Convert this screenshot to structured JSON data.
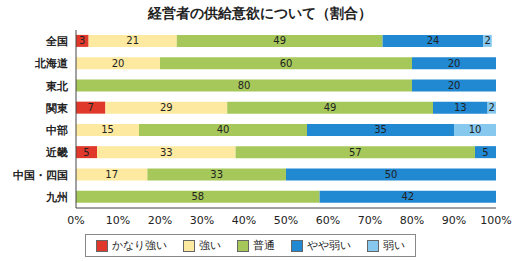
{
  "chart_data": {
    "type": "bar",
    "title": "経営者の供給意欲について（割合）",
    "orientation": "horizontal",
    "stacked": true,
    "data_labels": true,
    "grid": false,
    "legend": "bottom",
    "categories": [
      "全国",
      "北海道",
      "東北",
      "関東",
      "中部",
      "近畿",
      "中国・四国",
      "九州"
    ],
    "series": [
      {
        "name": "かなり強い",
        "color": "#e0392b",
        "values": [
          3,
          null,
          null,
          7,
          null,
          5,
          null,
          null
        ]
      },
      {
        "name": "強い",
        "color": "#fde9a0",
        "values": [
          21,
          20,
          null,
          29,
          15,
          33,
          17,
          null
        ]
      },
      {
        "name": "普通",
        "color": "#a6c85a",
        "values": [
          49,
          60,
          80,
          49,
          40,
          57,
          33,
          58
        ]
      },
      {
        "name": "やや弱い",
        "color": "#2188d2",
        "values": [
          24,
          20,
          20,
          13,
          35,
          5,
          50,
          42
        ]
      },
      {
        "name": "弱い",
        "color": "#86c8ee",
        "values": [
          2,
          null,
          null,
          2,
          10,
          null,
          null,
          null
        ]
      }
    ],
    "xlim": [
      0,
      100
    ],
    "xticks": [
      {
        "value": 0,
        "label": "0%"
      },
      {
        "value": 10,
        "label": "10%"
      },
      {
        "value": 20,
        "label": "20%"
      },
      {
        "value": 30,
        "label": "30%"
      },
      {
        "value": 40,
        "label": "40%"
      },
      {
        "value": 50,
        "label": "50%"
      },
      {
        "value": 60,
        "label": "60%"
      },
      {
        "value": 70,
        "label": "70%"
      },
      {
        "value": 80,
        "label": "80%"
      },
      {
        "value": 90,
        "label": "90%"
      },
      {
        "value": 100,
        "label": "100%"
      }
    ]
  }
}
